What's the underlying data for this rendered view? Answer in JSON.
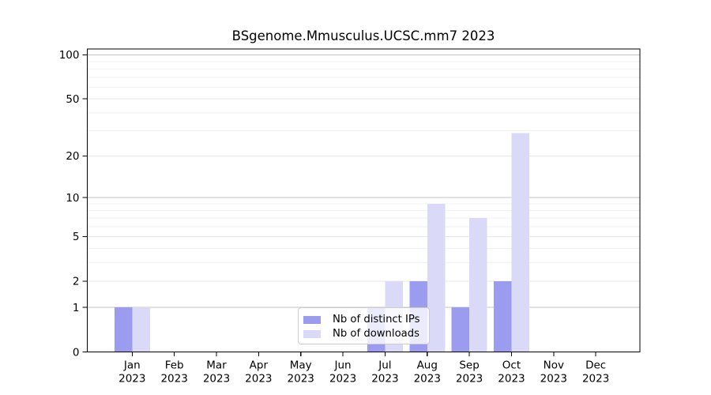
{
  "chart_data": {
    "type": "bar",
    "title": "BSgenome.Mmusculus.UCSC.mm7 2023",
    "year_label": "2023",
    "categories": [
      "Jan",
      "Feb",
      "Mar",
      "Apr",
      "May",
      "Jun",
      "Jul",
      "Aug",
      "Sep",
      "Oct",
      "Nov",
      "Dec"
    ],
    "series": [
      {
        "name": "Nb of distinct IPs",
        "color": "#9b9bf0",
        "values": [
          1,
          0,
          0,
          0,
          0,
          0,
          1,
          2,
          1,
          2,
          0,
          0
        ]
      },
      {
        "name": "Nb of downloads",
        "color": "#dadaf8",
        "values": [
          1,
          0,
          0,
          0,
          0,
          0,
          2,
          9,
          7,
          29,
          0,
          0
        ]
      }
    ],
    "y_axis": {
      "scale": "log1p",
      "ticks": [
        0,
        1,
        2,
        5,
        10,
        20,
        50,
        100
      ],
      "minor_gridlines": [
        3,
        4,
        6,
        7,
        8,
        9,
        30,
        40,
        60,
        70,
        80,
        90
      ],
      "ylim": [
        0,
        111
      ]
    },
    "xlabel": "",
    "ylabel": "",
    "grid": "horizontal",
    "legend_position": "lower center"
  }
}
